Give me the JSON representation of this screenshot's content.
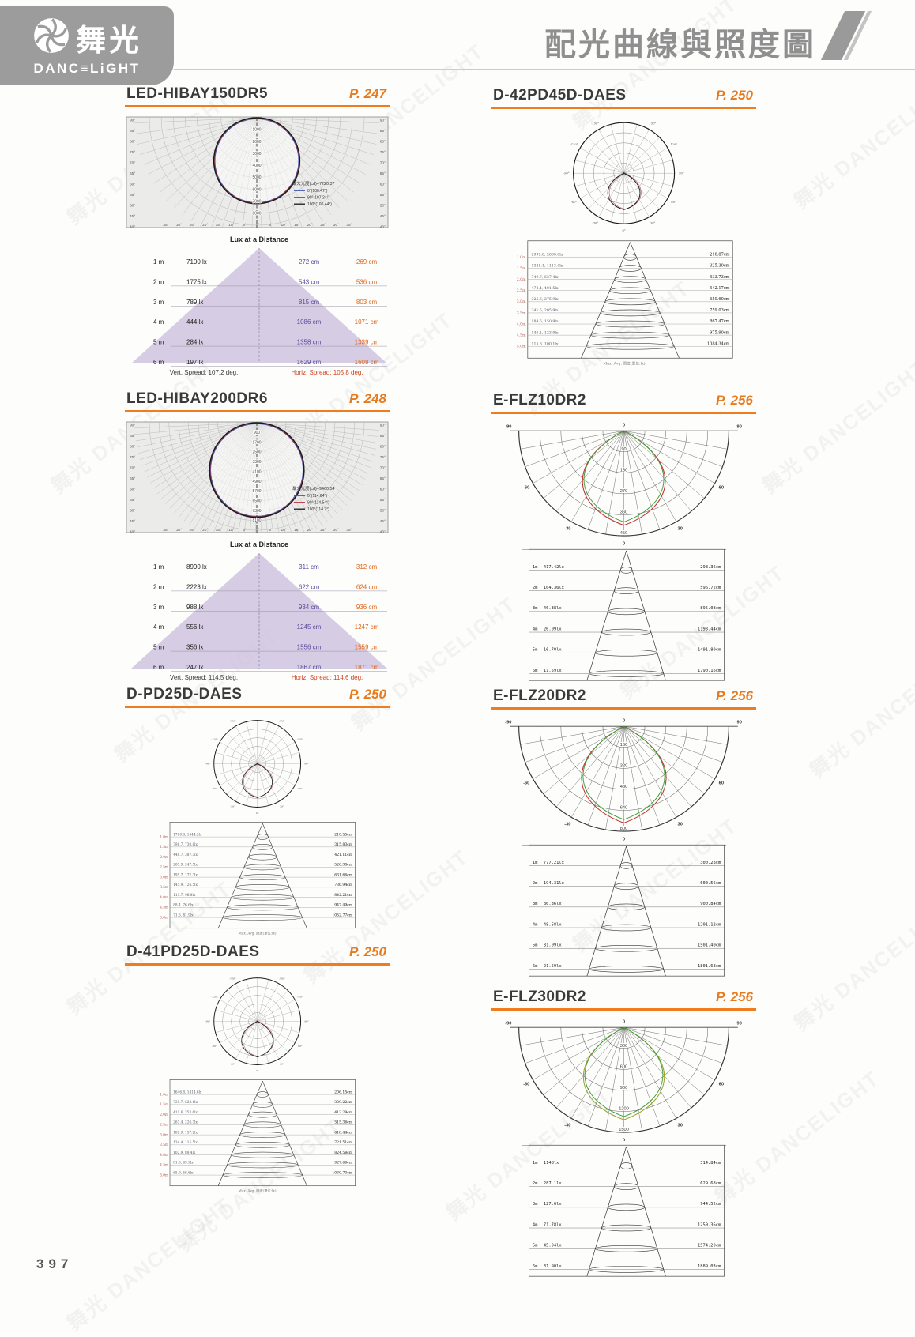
{
  "page": {
    "number": "397",
    "watermark": "舞光 DANCELIGHT"
  },
  "header": {
    "logo_cn": "舞光",
    "logo_en": "DANC≡LiGHT",
    "title": "配光曲線與照度圖"
  },
  "colors": {
    "accent": "#ef7c1e",
    "title_gray": "#8f8f8f",
    "logo_bg": "#9c9c9c",
    "cone_purple": "#cfc3de",
    "cm_blue": "#5b4a9b",
    "cm_orange": "#e0661a",
    "spread_dark": "#3a3a3a",
    "spread_red": "#d2401e"
  },
  "columns": {
    "left": [
      {
        "name": "LED-HIBAY150DR5",
        "page_ref": "P. 247",
        "type": "hibay",
        "polar": {
          "radial_labels": [
            "1000",
            "2000",
            "3000",
            "4000",
            "5000",
            "6000",
            "7000",
            "8000"
          ],
          "side_angles": [
            "90°",
            "85°",
            "80°",
            "75°",
            "70°",
            "65°",
            "60°",
            "55°",
            "50°",
            "45°",
            "40°"
          ],
          "bottom_angles": [
            "35°",
            "30°",
            "25°",
            "20°",
            "15°",
            "10°",
            "5°",
            "0°",
            "5°",
            "10°",
            "15°",
            "20°",
            "25°",
            "30°",
            "35°"
          ],
          "legend_title": "最大光度(cd)=7220.37",
          "legend": [
            {
              "label": "0°(106.47°)",
              "color": "#3a4fae"
            },
            {
              "label": "90°(107.24°)",
              "color": "#c23a4a"
            },
            {
              "label": "180°(106.44°)",
              "color": "#1a1a1a"
            }
          ],
          "beam_d": 0.8,
          "spoke_step": 5
        },
        "lux_table": {
          "title": "Lux at a Distance",
          "rows": [
            [
              "1 m",
              "7100 lx",
              "272 cm",
              "269 cm"
            ],
            [
              "2 m",
              "1775 lx",
              "543 cm",
              "536 cm"
            ],
            [
              "3 m",
              "789 lx",
              "815 cm",
              "803 cm"
            ],
            [
              "4 m",
              "444 lx",
              "1086 cm",
              "1071 cm"
            ],
            [
              "5 m",
              "284 lx",
              "1358 cm",
              "1339 cm"
            ],
            [
              "6 m",
              "197 lx",
              "1629 cm",
              "1608 cm"
            ]
          ],
          "vert_spread": "Vert. Spread: 107.2 deg.",
          "horiz_spread": "Horiz. Spread: 105.8 deg."
        }
      },
      {
        "name": "LED-HIBAY200DR6",
        "page_ref": "P. 248",
        "type": "hibay",
        "polar": {
          "radial_labels": [
            "900",
            "1700",
            "2500",
            "3300",
            "4100",
            "4900",
            "5700",
            "6500",
            "7300",
            "8100"
          ],
          "side_angles": [
            "90°",
            "85°",
            "80°",
            "75°",
            "70°",
            "65°",
            "60°",
            "55°",
            "50°",
            "45°",
            "40°"
          ],
          "bottom_angles": [
            "35°",
            "30°",
            "25°",
            "20°",
            "15°",
            "10°",
            "5°",
            "0°",
            "5°",
            "10°",
            "15°",
            "20°",
            "25°",
            "30°",
            "35°"
          ],
          "legend_title": "最大光度(cd)=9460.54",
          "legend": [
            {
              "label": "0°(114.64°)",
              "color": "#3a4fae"
            },
            {
              "label": "90°(114.54°)",
              "color": "#c23a4a"
            },
            {
              "label": "180°(114.7°)",
              "color": "#1a1a1a"
            }
          ],
          "beam_d": 0.88,
          "spoke_step": 3
        },
        "lux_table": {
          "title": "Lux at a Distance",
          "rows": [
            [
              "1 m",
              "8990 lx",
              "311 cm",
              "312 cm"
            ],
            [
              "2 m",
              "2223 lx",
              "622 cm",
              "624 cm"
            ],
            [
              "3 m",
              "988 lx",
              "934 cm",
              "936 cm"
            ],
            [
              "4 m",
              "556 lx",
              "1245 cm",
              "1247 cm"
            ],
            [
              "5 m",
              "356 lx",
              "1556 cm",
              "1559 cm"
            ],
            [
              "6 m",
              "247 lx",
              "1867 cm",
              "1871 cm"
            ]
          ],
          "vert_spread": "Vert. Spread: 114.5 deg.",
          "horiz_spread": "Horiz. Spread: 114.6 deg."
        }
      },
      {
        "name": "D-PD25D-DAES",
        "page_ref": "P. 250",
        "type": "circle",
        "polar": {
          "angle_labels": [
            {
              "a": 0,
              "t": "0°"
            },
            {
              "a": 30,
              "t": "30°"
            },
            {
              "a": -30,
              "t": "-30°"
            },
            {
              "a": 60,
              "t": "60°"
            },
            {
              "a": -60,
              "t": "-60°"
            },
            {
              "a": 90,
              "t": "90°"
            },
            {
              "a": -90,
              "t": "-90°"
            },
            {
              "a": 120,
              "t": "120°"
            },
            {
              "a": -120,
              "t": "-120°"
            },
            {
              "a": 150,
              "t": "150°"
            },
            {
              "a": -150,
              "t": "-150°"
            }
          ],
          "lobe": 0.78
        },
        "cone_table": {
          "rows": [
            [
              "1.0m",
              "1760.8, 1644.2lx",
              "210.55cm"
            ],
            [
              "1.5m",
              "798.7, 730.8lx",
              "315.83cm"
            ],
            [
              "2.0m",
              "440.7, 387.3lx",
              "421.11cm"
            ],
            [
              "2.5m",
              "285.9, 247.5lx",
              "526.38cm"
            ],
            [
              "3.0m",
              "195.7, 172.3lx",
              "631.66cm"
            ],
            [
              "3.5m",
              "145.9, 126.5lx",
              "736.94cm"
            ],
            [
              "4.0m",
              "111.7, 96.8lx",
              "842.21cm"
            ],
            [
              "4.5m",
              "88.4, 76.6lx",
              "947.49cm"
            ],
            [
              "5.0m",
              "71.6, 61.9lx",
              "1052.77cm"
            ]
          ],
          "caption": "Max.  Avg.   照度(單位:lx)"
        }
      },
      {
        "name": "D-41PD25D-DAES",
        "page_ref": "P. 250",
        "type": "circle",
        "polar": {
          "angle_labels": [
            {
              "a": 0,
              "t": "0°"
            },
            {
              "a": 30,
              "t": "30°"
            },
            {
              "a": -30,
              "t": "-30°"
            },
            {
              "a": 60,
              "t": "60°"
            },
            {
              "a": -60,
              "t": "-60°"
            },
            {
              "a": 90,
              "t": "90°"
            },
            {
              "a": -90,
              "t": "-90°"
            },
            {
              "a": 120,
              "t": "120°"
            },
            {
              "a": -120,
              "t": "-120°"
            },
            {
              "a": 150,
              "t": "150°"
            },
            {
              "a": -150,
              "t": "-150°"
            }
          ],
          "lobe": 0.82
        },
        "cone_table": {
          "rows": [
            [
              "1.0m",
              "1646.8, 1414.6lx",
              "206.15cm"
            ],
            [
              "1.5m",
              "731.7, 628.6lx",
              "309.22cm"
            ],
            [
              "2.0m",
              "411.6, 353.6lx",
              "412.29cm"
            ],
            [
              "2.5m",
              "263.4, 226.3lx",
              "515.36cm"
            ],
            [
              "3.0m",
              "182.9, 157.2lx",
              "618.44cm"
            ],
            [
              "3.5m",
              "134.4, 115.5lx",
              "721.51cm"
            ],
            [
              "4.0m",
              "102.9, 88.4lx",
              "824.58cm"
            ],
            [
              "4.5m",
              "81.3, 69.9lx",
              "927.66cm"
            ],
            [
              "5.0m",
              "65.9, 56.6lx",
              "1030.73cm"
            ]
          ],
          "caption": "Max.  Avg.   照度(單位:lx)"
        }
      }
    ],
    "right": [
      {
        "name": "D-42PD45D-DAES",
        "page_ref": "P. 250",
        "type": "circle",
        "polar": {
          "angle_labels": [
            {
              "a": 0,
              "t": "0°"
            },
            {
              "a": 30,
              "t": "30°"
            },
            {
              "a": -30,
              "t": "-30°"
            },
            {
              "a": 60,
              "t": "60°"
            },
            {
              "a": -60,
              "t": "-60°"
            },
            {
              "a": 90,
              "t": "90°"
            },
            {
              "a": -90,
              "t": "-90°"
            },
            {
              "a": 120,
              "t": "120°"
            },
            {
              "a": -120,
              "t": "-120°"
            },
            {
              "a": 150,
              "t": "150°"
            },
            {
              "a": -150,
              "t": "-150°"
            }
          ],
          "lobe": 0.72
        },
        "cone_table": {
          "rows": [
            [
              "1.0m",
              "2999.0, 2600.0lx",
              "216.87cm"
            ],
            [
              "1.5m",
              "1345.1, 1113.4lx",
              "325.30cm"
            ],
            [
              "2.0m",
              "749.7, 627.4lx",
              "433.73cm"
            ],
            [
              "2.5m",
              "473.4, 401.5lx",
              "542.17cm"
            ],
            [
              "3.0m",
              "325.6, 275.9lx",
              "650.60cm"
            ],
            [
              "3.5m",
              "241.5, 205.9lx",
              "759.03cm"
            ],
            [
              "4.0m",
              "184.5, 150.9lx",
              "867.47cm"
            ],
            [
              "4.5m",
              "146.1, 123.9lx",
              "975.90cm"
            ],
            [
              "5.0m",
              "115.6, 100.1lx",
              "1084.34cm"
            ]
          ],
          "caption": "Max.  Avg.   照度(單位:lx)"
        }
      },
      {
        "name": "E-FLZ10DR2",
        "page_ref": "P. 256",
        "type": "fan",
        "polar": {
          "rings": [
            "90",
            "180",
            "270",
            "360",
            "450"
          ],
          "angle_labels": [
            {
              "a": -90,
              "t": "-90"
            },
            {
              "a": -60,
              "t": "-60"
            },
            {
              "a": -30,
              "t": "-30"
            },
            {
              "a": 30,
              "t": "30"
            },
            {
              "a": 60,
              "t": "60"
            },
            {
              "a": 90,
              "t": "90"
            }
          ],
          "top_label": "0",
          "bottom_label": "0",
          "curve_colors": [
            "#c03030",
            "#3f9b35"
          ],
          "lobe": 0.9
        },
        "cone_table": {
          "rows": [
            [
              "1m",
              "417.42lx",
              "298.36cm"
            ],
            [
              "2m",
              "104.36lx",
              "596.72cm"
            ],
            [
              "3m",
              "46.38lx",
              "895.08cm"
            ],
            [
              "4m",
              "26.09lx",
              "1193.44cm"
            ],
            [
              "5m",
              "16.70lx",
              "1491.80cm"
            ],
            [
              "6m",
              "11.59lx",
              "1790.16cm"
            ]
          ]
        }
      },
      {
        "name": "E-FLZ20DR2",
        "page_ref": "P. 256",
        "type": "fan",
        "polar": {
          "rings": [
            "160",
            "320",
            "480",
            "640",
            "800"
          ],
          "angle_labels": [
            {
              "a": -90,
              "t": "-90"
            },
            {
              "a": -60,
              "t": "-60"
            },
            {
              "a": -30,
              "t": "-30"
            },
            {
              "a": 30,
              "t": "30"
            },
            {
              "a": 60,
              "t": "60"
            },
            {
              "a": 90,
              "t": "90"
            }
          ],
          "top_label": "0",
          "bottom_label": "0",
          "curve_colors": [
            "#c03030",
            "#3f9b35"
          ],
          "lobe": 0.92
        },
        "cone_table": {
          "rows": [
            [
              "1m",
              "777.21lx",
              "300.28cm"
            ],
            [
              "2m",
              "194.31lx",
              "600.56cm"
            ],
            [
              "3m",
              "86.36lx",
              "900.84cm"
            ],
            [
              "4m",
              "48.58lx",
              "1201.12cm"
            ],
            [
              "5m",
              "31.09lx",
              "1501.40cm"
            ],
            [
              "6m",
              "21.59lx",
              "1801.68cm"
            ]
          ]
        }
      },
      {
        "name": "E-FLZ30DR2",
        "page_ref": "P. 256",
        "type": "fan",
        "polar": {
          "rings": [
            "300",
            "600",
            "900",
            "1200",
            "1500"
          ],
          "angle_labels": [
            {
              "a": -90,
              "t": "-90"
            },
            {
              "a": -60,
              "t": "-60"
            },
            {
              "a": -30,
              "t": "-30"
            },
            {
              "a": 30,
              "t": "30"
            },
            {
              "a": 60,
              "t": "60"
            },
            {
              "a": 90,
              "t": "90"
            }
          ],
          "top_label": "0",
          "bottom_label": "0",
          "curve_colors": [
            "#a0a030",
            "#3f9b35"
          ],
          "lobe": 0.88
        },
        "cone_table": {
          "rows": [
            [
              "1m",
              "1148lx",
              "314.84cm"
            ],
            [
              "2m",
              "287.1lx",
              "629.68cm"
            ],
            [
              "3m",
              "127.6lx",
              "944.52cm"
            ],
            [
              "4m",
              "71.78lx",
              "1259.36cm"
            ],
            [
              "5m",
              "45.94lx",
              "1574.20cm"
            ],
            [
              "6m",
              "31.90lx",
              "1889.03cm"
            ]
          ]
        }
      }
    ]
  }
}
